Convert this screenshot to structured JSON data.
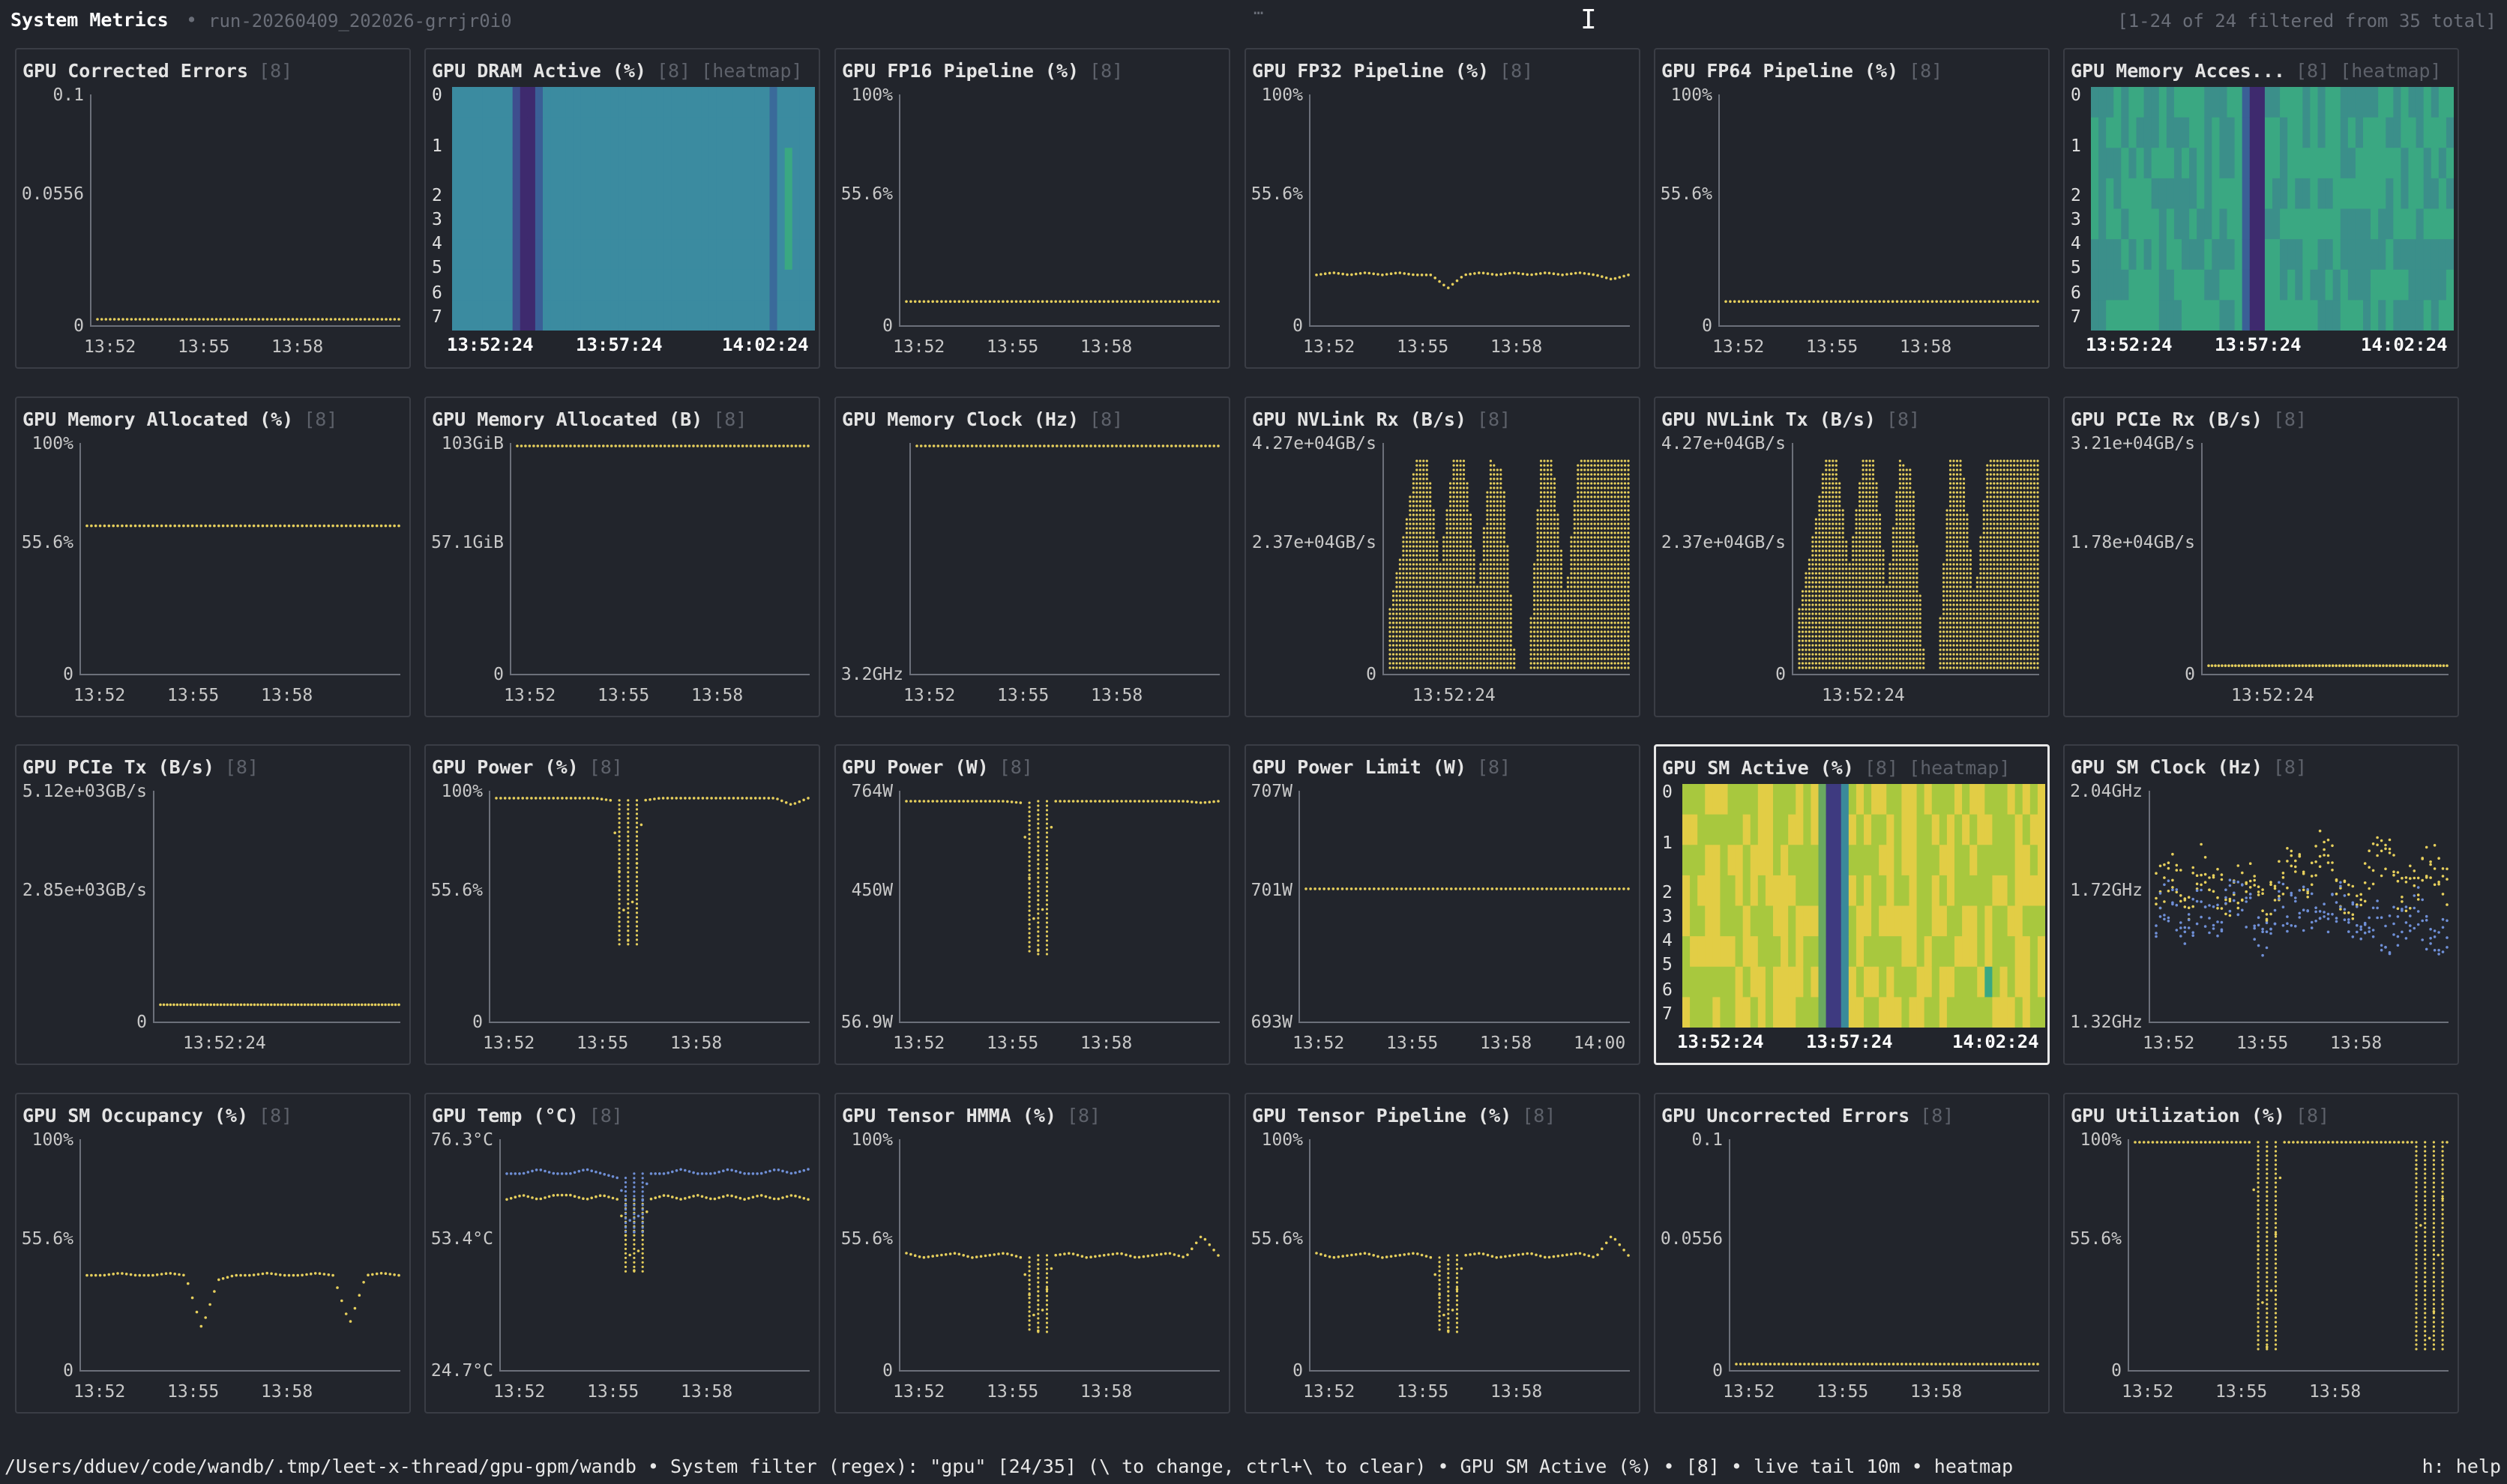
{
  "header": {
    "title": "System Metrics",
    "separator": "•",
    "run_id": "run-20260409_202026-grrjr0i0",
    "filter_count": "[1-24 of 24 filtered from 35 total]",
    "grip": "…"
  },
  "colors": {
    "background": "#22252c",
    "panel_border": "#3a3d45",
    "series_primary": "#e6cf5c",
    "series_secondary": "#6f8fd6",
    "heatmap_dark": "#3e2a6e",
    "heatmap_teal": "#3b8ba0",
    "heatmap_green": "#3aa882",
    "heatmap_yellow": "#e2cd45"
  },
  "status_bar": {
    "text": "/Users/dduev/code/wandb/.tmp/leet-x-thread/gpu-gpm/wandb • System filter (regex): \"gpu\" [24/35] (\\ to change, ctrl+\\ to clear) • GPU SM Active (%) • [8] • live tail 10m • heatmap",
    "help": "h: help"
  },
  "panels": [
    {
      "title": "GPU Corrected Errors",
      "count": "[8]",
      "type": "line",
      "y_ticks": [
        "0.1",
        "0.0556",
        "0"
      ],
      "x_ticks": [
        "13:52",
        "13:55",
        "13:58"
      ],
      "y_range": [
        0,
        0.1
      ],
      "series": [
        {
          "color": "#e6cf5c",
          "values": [
            0,
            0,
            0,
            0,
            0,
            0,
            0,
            0,
            0,
            0,
            0,
            0,
            0,
            0,
            0,
            0,
            0,
            0,
            0,
            0
          ]
        }
      ]
    },
    {
      "title": "GPU DRAM Active (%)",
      "count": "[8]",
      "heatmap": "[heatmap]",
      "type": "heatmap",
      "rows": [
        "0",
        "1",
        "2",
        "3",
        "4",
        "5",
        "6",
        "7"
      ],
      "x_ticks": [
        "13:52:24",
        "13:57:24",
        "14:02:24"
      ],
      "palette": "dram"
    },
    {
      "title": "GPU FP16 Pipeline (%)",
      "count": "[8]",
      "type": "line",
      "y_ticks": [
        "100%",
        "55.6%",
        "0"
      ],
      "x_ticks": [
        "13:52",
        "13:55",
        "13:58"
      ],
      "y_range": [
        0,
        100
      ],
      "series": [
        {
          "color": "#e6cf5c",
          "values": [
            8,
            8,
            8,
            8,
            8,
            8,
            8,
            8,
            8,
            8,
            8,
            8,
            8,
            8,
            8,
            8,
            8,
            8,
            8,
            8
          ]
        }
      ]
    },
    {
      "title": "GPU FP32 Pipeline (%)",
      "count": "[8]",
      "type": "line",
      "y_ticks": [
        "100%",
        "55.6%",
        "0"
      ],
      "x_ticks": [
        "13:52",
        "13:55",
        "13:58"
      ],
      "y_range": [
        0,
        100
      ],
      "series": [
        {
          "color": "#e6cf5c",
          "values": [
            20,
            21,
            20,
            21,
            20,
            21,
            20,
            20,
            14,
            20,
            21,
            20,
            21,
            20,
            21,
            20,
            21,
            20,
            18,
            20
          ]
        }
      ]
    },
    {
      "title": "GPU FP64 Pipeline (%)",
      "count": "[8]",
      "type": "line",
      "y_ticks": [
        "100%",
        "55.6%",
        "0"
      ],
      "x_ticks": [
        "13:52",
        "13:55",
        "13:58"
      ],
      "y_range": [
        0,
        100
      ],
      "series": [
        {
          "color": "#e6cf5c",
          "values": [
            8,
            8,
            8,
            8,
            8,
            8,
            8,
            8,
            8,
            8,
            8,
            8,
            8,
            8,
            8,
            8,
            8,
            8,
            8,
            8
          ]
        }
      ]
    },
    {
      "title": "GPU Memory Acces...",
      "count": "[8]",
      "heatmap": "[heatmap]",
      "type": "heatmap",
      "rows": [
        "0",
        "1",
        "2",
        "3",
        "4",
        "5",
        "6",
        "7"
      ],
      "x_ticks": [
        "13:52:24",
        "13:57:24",
        "14:02:24"
      ],
      "palette": "mem"
    },
    {
      "title": "GPU Memory Allocated (%)",
      "count": "[8]",
      "type": "line",
      "y_ticks": [
        "100%",
        "55.6%",
        "0"
      ],
      "x_ticks": [
        "13:52",
        "13:55",
        "13:58"
      ],
      "y_range": [
        0,
        100
      ],
      "series": [
        {
          "color": "#e6cf5c",
          "values": [
            64,
            64,
            64,
            64,
            64,
            64,
            64,
            64,
            64,
            64,
            64,
            64,
            64,
            64,
            64,
            64,
            64,
            64,
            64,
            64
          ]
        }
      ]
    },
    {
      "title": "GPU Memory Allocated (B)",
      "count": "[8]",
      "type": "line",
      "y_ticks": [
        "103GiB",
        "57.1GiB",
        "0"
      ],
      "x_ticks": [
        "13:52",
        "13:55",
        "13:58"
      ],
      "y_range": [
        0,
        103
      ],
      "series": [
        {
          "color": "#e6cf5c",
          "values": [
            103,
            103,
            103,
            103,
            103,
            103,
            103,
            103,
            103,
            103,
            103,
            103,
            103,
            103,
            103,
            103,
            103,
            103,
            103,
            103
          ]
        }
      ]
    },
    {
      "title": "GPU Memory Clock (Hz)",
      "count": "[8]",
      "type": "line",
      "y_ticks": [
        "",
        "",
        "3.2GHz"
      ],
      "x_ticks": [
        "13:52",
        "13:55",
        "13:58"
      ],
      "y_range": [
        0,
        100
      ],
      "series": [
        {
          "color": "#e6cf5c",
          "values": [
            100,
            100,
            100,
            100,
            100,
            100,
            100,
            100,
            100,
            100,
            100,
            100,
            100,
            100,
            100,
            100,
            100,
            100,
            100,
            100
          ]
        }
      ]
    },
    {
      "title": "GPU NVLink Rx (B/s)",
      "count": "[8]",
      "type": "bars",
      "y_ticks": [
        "4.27e+04GB/s",
        "2.37e+04GB/s",
        "0"
      ],
      "x_ticks": [
        "13:52:24"
      ],
      "y_range": [
        0,
        42700
      ],
      "series": [
        {
          "color": "#e6cf5c",
          "values": [
            12000,
            24000,
            40000,
            40000,
            20000,
            40000,
            40000,
            15000,
            40000,
            38000,
            0,
            0,
            40000,
            40000,
            13000,
            40000,
            40000,
            40000,
            40000,
            40000
          ]
        }
      ]
    },
    {
      "title": "GPU NVLink Tx (B/s)",
      "count": "[8]",
      "type": "bars",
      "y_ticks": [
        "4.27e+04GB/s",
        "2.37e+04GB/s",
        "0"
      ],
      "x_ticks": [
        "13:52:24"
      ],
      "y_range": [
        0,
        42700
      ],
      "series": [
        {
          "color": "#e6cf5c",
          "values": [
            12000,
            24000,
            40000,
            40000,
            20000,
            40000,
            40000,
            15000,
            40000,
            38000,
            0,
            0,
            40000,
            40000,
            13000,
            40000,
            40000,
            40000,
            40000,
            40000
          ]
        }
      ]
    },
    {
      "title": "GPU PCIe Rx (B/s)",
      "count": "[8]",
      "type": "line",
      "y_ticks": [
        "3.21e+04GB/s",
        "1.78e+04GB/s",
        "0"
      ],
      "x_ticks": [
        "13:52:24"
      ],
      "y_range": [
        0,
        32100
      ],
      "series": [
        {
          "color": "#e6cf5c",
          "values": [
            300,
            300,
            300,
            300,
            300,
            300,
            300,
            300,
            300,
            300,
            300,
            300,
            300,
            300,
            300,
            300,
            300,
            300,
            300,
            300
          ]
        }
      ]
    },
    {
      "title": "GPU PCIe Tx (B/s)",
      "count": "[8]",
      "type": "line",
      "y_ticks": [
        "5.12e+03GB/s",
        "2.85e+03GB/s",
        "0"
      ],
      "x_ticks": [
        "13:52:24"
      ],
      "y_range": [
        0,
        5120
      ],
      "series": [
        {
          "color": "#e6cf5c",
          "values": [
            250,
            250,
            250,
            250,
            250,
            250,
            250,
            250,
            250,
            250,
            250,
            250,
            250,
            250,
            250,
            250,
            250,
            250,
            250,
            250
          ]
        }
      ]
    },
    {
      "title": "GPU Power (%)",
      "count": "[8]",
      "type": "line",
      "y_ticks": [
        "100%",
        "55.6%",
        "0"
      ],
      "x_ticks": [
        "13:52",
        "13:55",
        "13:58"
      ],
      "y_range": [
        0,
        100
      ],
      "series": [
        {
          "color": "#e6cf5c",
          "values": [
            98,
            98,
            98,
            98,
            98,
            98,
            98,
            97,
            32,
            97,
            98,
            98,
            98,
            98,
            98,
            98,
            98,
            98,
            95,
            98
          ]
        }
      ]
    },
    {
      "title": "GPU Power (W)",
      "count": "[8]",
      "type": "line",
      "y_ticks": [
        "764W",
        "450W",
        "56.9W"
      ],
      "x_ticks": [
        "13:52",
        "13:55",
        "13:58"
      ],
      "y_range": [
        56.9,
        764
      ],
      "series": [
        {
          "color": "#e6cf5c",
          "values": [
            740,
            740,
            740,
            740,
            740,
            740,
            740,
            735,
            250,
            740,
            740,
            740,
            740,
            740,
            740,
            740,
            740,
            740,
            735,
            740
          ]
        }
      ]
    },
    {
      "title": "GPU Power Limit (W)",
      "count": "[8]",
      "type": "line",
      "y_ticks": [
        "707W",
        "701W",
        "693W"
      ],
      "x_ticks": [
        "13:52",
        "13:55",
        "13:58",
        "14:00"
      ],
      "y_range": [
        693,
        707
      ],
      "series": [
        {
          "color": "#e6cf5c",
          "values": [
            701,
            701,
            701,
            701,
            701,
            701,
            701,
            701,
            701,
            701,
            701,
            701,
            701,
            701,
            701,
            701,
            701,
            701,
            701,
            701
          ]
        }
      ]
    },
    {
      "title": "GPU SM Active (%)",
      "count": "[8]",
      "heatmap": "[heatmap]",
      "type": "heatmap",
      "rows": [
        "0",
        "1",
        "2",
        "3",
        "4",
        "5",
        "6",
        "7"
      ],
      "x_ticks": [
        "13:52:24",
        "13:57:24",
        "14:02:24"
      ],
      "palette": "sm",
      "selected": true
    },
    {
      "title": "GPU SM Clock (Hz)",
      "count": "[8]",
      "type": "scatter",
      "y_ticks": [
        "2.04GHz",
        "1.72GHz",
        "1.32GHz"
      ],
      "x_ticks": [
        "13:52",
        "13:55",
        "13:58"
      ],
      "y_range": [
        1.32,
        2.04
      ],
      "series": [
        {
          "color": "#e6cf5c",
          "values": [
            1.72,
            1.78,
            1.68,
            1.82,
            1.74,
            1.7,
            1.8,
            1.66,
            1.76,
            1.84,
            1.72,
            1.9,
            1.74,
            1.68,
            1.8,
            1.86,
            1.7,
            1.76,
            1.82,
            1.74
          ]
        },
        {
          "color": "#6f8fd6",
          "values": [
            1.64,
            1.7,
            1.6,
            1.68,
            1.62,
            1.72,
            1.66,
            1.58,
            1.7,
            1.64,
            1.68,
            1.62,
            1.7,
            1.6,
            1.66,
            1.58,
            1.62,
            1.68,
            1.56,
            1.6
          ]
        }
      ]
    },
    {
      "title": "GPU SM Occupancy (%)",
      "count": "[8]",
      "type": "line",
      "y_ticks": [
        "100%",
        "55.6%",
        "0"
      ],
      "x_ticks": [
        "13:52",
        "13:55",
        "13:58"
      ],
      "y_range": [
        0,
        100
      ],
      "series": [
        {
          "color": "#e6cf5c",
          "values": [
            40,
            40,
            41,
            40,
            40,
            41,
            40,
            16,
            38,
            40,
            40,
            41,
            40,
            40,
            41,
            40,
            18,
            40,
            41,
            40
          ]
        }
      ]
    },
    {
      "title": "GPU Temp (°C)",
      "count": "[8]",
      "type": "line",
      "y_ticks": [
        "76.3°C",
        "53.4°C",
        "24.7°C"
      ],
      "x_ticks": [
        "13:52",
        "13:55",
        "13:58"
      ],
      "y_range": [
        24.7,
        76.3
      ],
      "series": [
        {
          "color": "#e6cf5c",
          "values": [
            63,
            64,
            63,
            64,
            64,
            63,
            64,
            63,
            46,
            63,
            64,
            63,
            64,
            63,
            64,
            63,
            64,
            63,
            64,
            63
          ]
        },
        {
          "color": "#6f8fd6",
          "values": [
            69,
            69,
            70,
            69,
            69,
            70,
            69,
            68,
            55,
            69,
            69,
            70,
            69,
            69,
            70,
            69,
            69,
            70,
            69,
            70
          ]
        }
      ]
    },
    {
      "title": "GPU Tensor HMMA (%)",
      "count": "[8]",
      "type": "line",
      "y_ticks": [
        "100%",
        "55.6%",
        "0"
      ],
      "x_ticks": [
        "13:52",
        "13:55",
        "13:58"
      ],
      "y_range": [
        0,
        100
      ],
      "series": [
        {
          "color": "#e6cf5c",
          "values": [
            50,
            48,
            49,
            50,
            48,
            49,
            50,
            48,
            14,
            49,
            50,
            48,
            49,
            50,
            48,
            49,
            50,
            48,
            58,
            49
          ]
        }
      ]
    },
    {
      "title": "GPU Tensor Pipeline (%)",
      "count": "[8]",
      "type": "line",
      "y_ticks": [
        "100%",
        "55.6%",
        "0"
      ],
      "x_ticks": [
        "13:52",
        "13:55",
        "13:58"
      ],
      "y_range": [
        0,
        100
      ],
      "series": [
        {
          "color": "#e6cf5c",
          "values": [
            50,
            48,
            49,
            50,
            48,
            49,
            50,
            48,
            14,
            49,
            50,
            48,
            49,
            50,
            48,
            49,
            50,
            48,
            58,
            49
          ]
        }
      ]
    },
    {
      "title": "GPU Uncorrected Errors",
      "count": "[8]",
      "type": "line",
      "y_ticks": [
        "0.1",
        "0.0556",
        "0"
      ],
      "x_ticks": [
        "13:52",
        "13:55",
        "13:58"
      ],
      "y_range": [
        0,
        0.1
      ],
      "series": [
        {
          "color": "#e6cf5c",
          "values": [
            0,
            0,
            0,
            0,
            0,
            0,
            0,
            0,
            0,
            0,
            0,
            0,
            0,
            0,
            0,
            0,
            0,
            0,
            0,
            0
          ]
        }
      ]
    },
    {
      "title": "GPU Utilization (%)",
      "count": "[8]",
      "type": "line",
      "y_ticks": [
        "100%",
        "55.6%",
        "0"
      ],
      "x_ticks": [
        "13:52",
        "13:55",
        "13:58"
      ],
      "y_range": [
        0,
        100
      ],
      "series": [
        {
          "color": "#e6cf5c",
          "values": [
            100,
            100,
            100,
            100,
            100,
            100,
            100,
            100,
            5,
            100,
            100,
            100,
            100,
            100,
            100,
            100,
            100,
            100,
            5,
            100
          ]
        }
      ]
    }
  ]
}
